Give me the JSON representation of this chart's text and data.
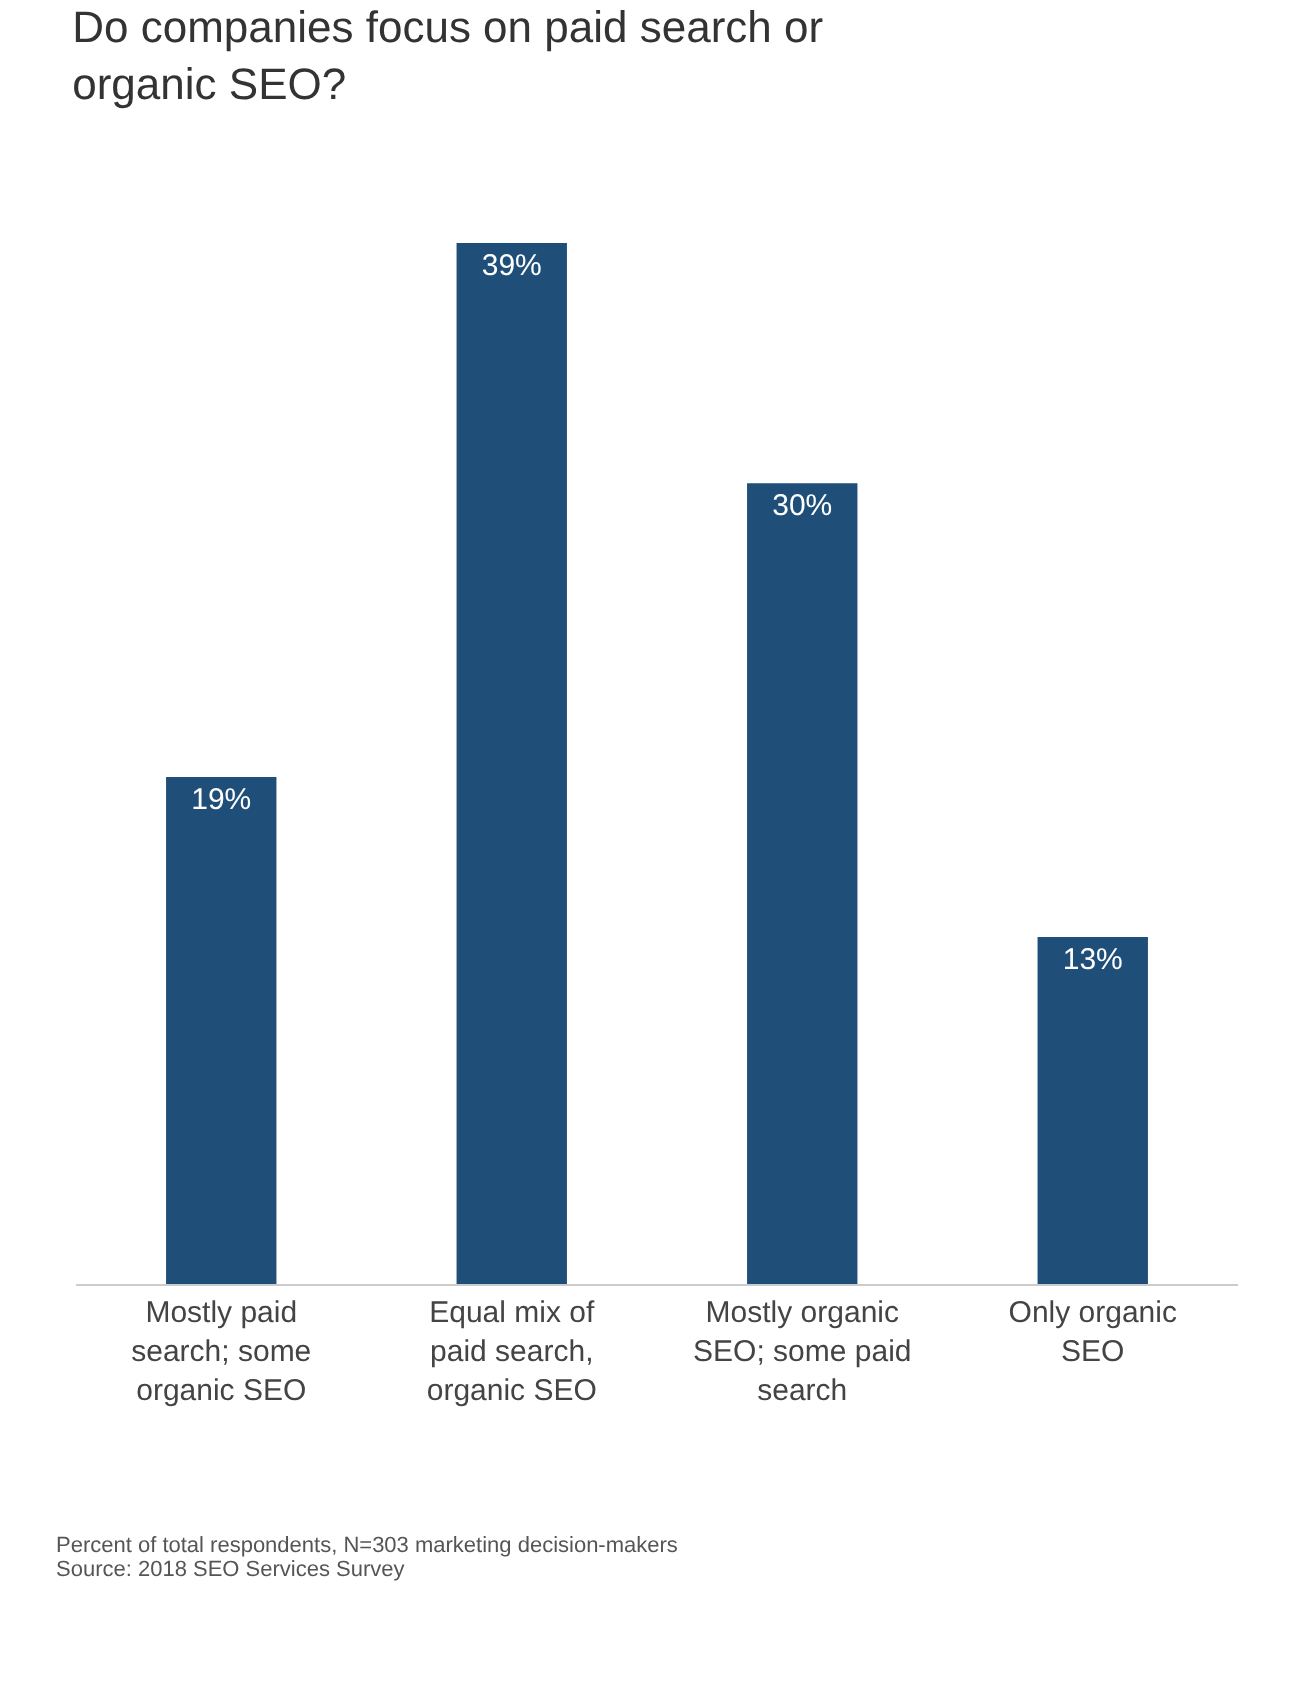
{
  "chart_data": {
    "type": "bar",
    "title": "Do companies focus on paid search or organic SEO?",
    "categories": [
      "Mostly paid search; some organic SEO",
      "Equal mix of paid search, organic SEO",
      "Mostly organic SEO; some paid search",
      "Only organic SEO"
    ],
    "values": [
      19,
      39,
      30,
      13
    ],
    "value_labels": [
      "19%",
      "39%",
      "30%",
      "13%"
    ],
    "color": "#1f4e79",
    "annotations": [
      "Percent of total respondents, N=303 marketing decision-makers",
      "Source: 2018 SEO Services Survey"
    ]
  }
}
